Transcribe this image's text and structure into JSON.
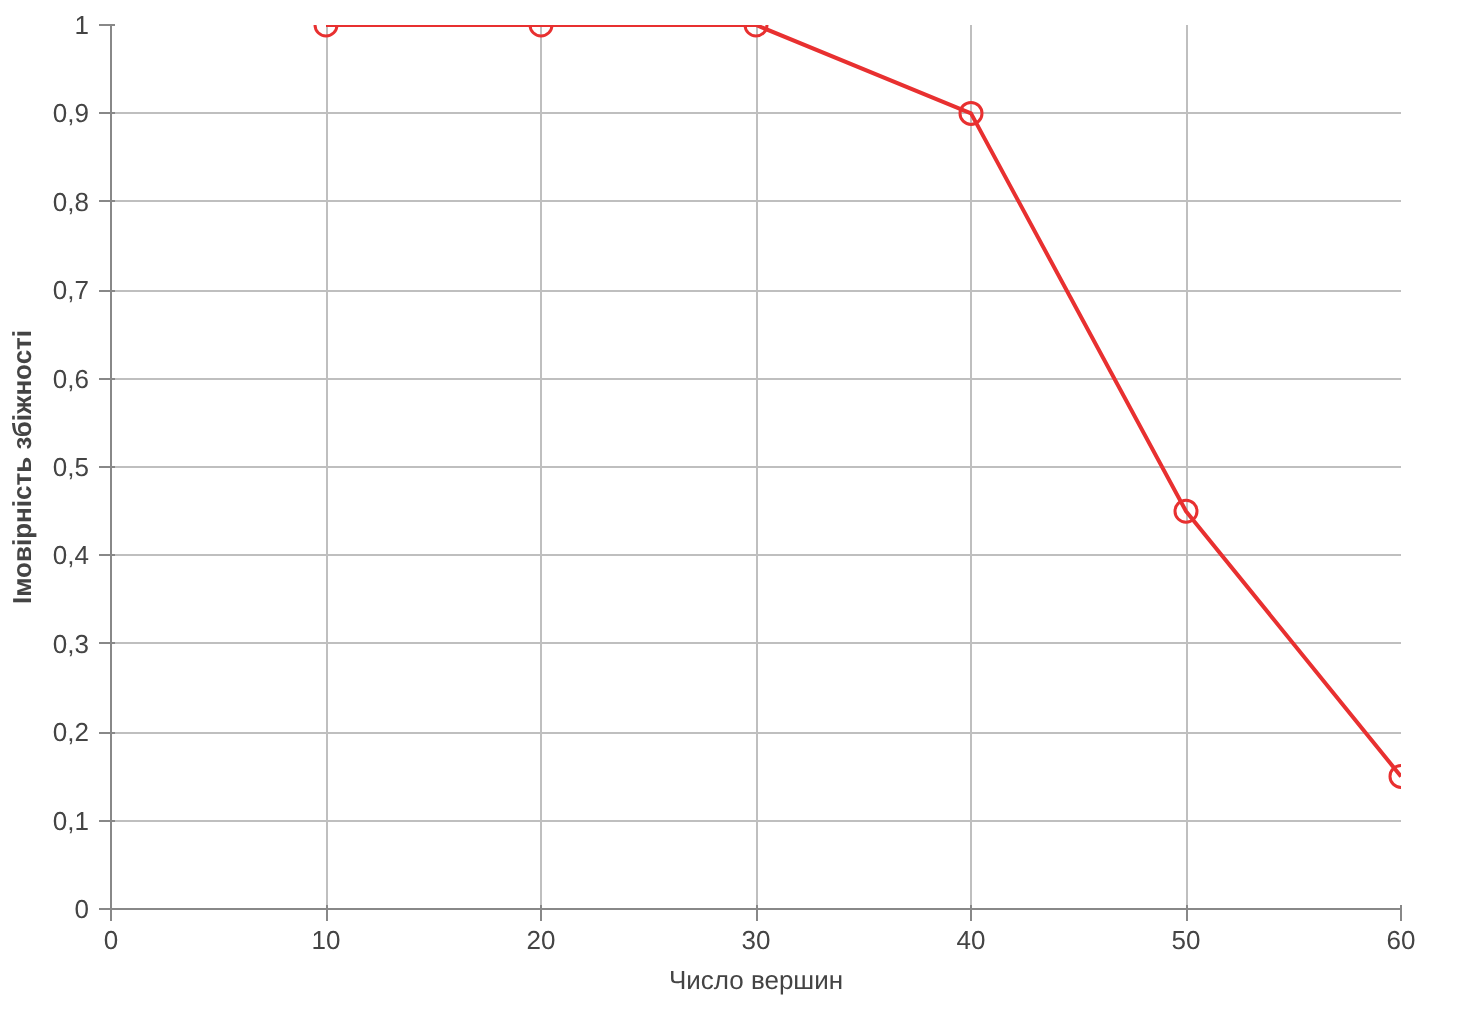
{
  "chart_data": {
    "type": "line",
    "xlabel": "Число вершин",
    "ylabel": "Імовірність збіжності",
    "x": [
      10,
      20,
      30,
      40,
      50,
      60
    ],
    "series": [
      {
        "color": "#e83030",
        "values": [
          1,
          1,
          1,
          0.9,
          0.45,
          0.15
        ]
      }
    ],
    "xlim": [
      0,
      60
    ],
    "xticks": [
      0,
      10,
      20,
      30,
      40,
      50,
      60
    ],
    "ylim": [
      0,
      1
    ],
    "yticks": [
      0,
      {
        "value": 0.1,
        "label": "0,1"
      },
      {
        "value": 0.2,
        "label": "0,2"
      },
      {
        "value": 0.3,
        "label": "0,3"
      },
      {
        "value": 0.4,
        "label": "0,4"
      },
      {
        "value": 0.5,
        "label": "0,5"
      },
      {
        "value": 0.6,
        "label": "0,6"
      },
      {
        "value": 0.7,
        "label": "0,7"
      },
      {
        "value": 0.8,
        "label": "0,8"
      },
      {
        "value": 0.9,
        "label": "0,9"
      },
      1
    ],
    "grid": true,
    "marker": "circle",
    "line_style": "solid"
  }
}
